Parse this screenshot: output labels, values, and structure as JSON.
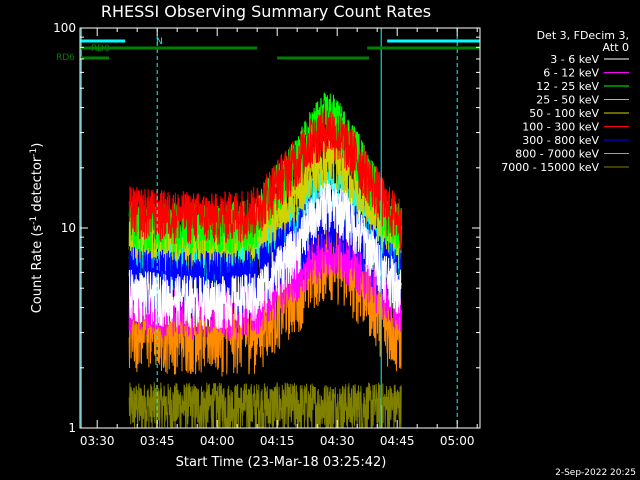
{
  "chart_data": {
    "type": "line",
    "title": "RHESSI Observing Summary Count Rates",
    "xlabel": "Start Time (23-Mar-18 03:25:42)",
    "ylabel_main": "Count Rate (s",
    "ylabel_sup1": "-1",
    "ylabel_mid": " detector",
    "ylabel_sup2": "-1",
    "ylabel_end": ")",
    "y_scale": "log",
    "ylim": [
      1,
      100
    ],
    "y_ticks": [
      {
        "value": 1,
        "label": "1"
      },
      {
        "value": 10,
        "label": "10"
      },
      {
        "value": 100,
        "label": "100"
      }
    ],
    "xlim": [
      "03:25:42",
      "05:05:42"
    ],
    "x_ticks": [
      {
        "time": "03:30",
        "label": "03:30"
      },
      {
        "time": "03:45",
        "label": "03:45"
      },
      {
        "time": "04:00",
        "label": "04:00"
      },
      {
        "time": "04:15",
        "label": "04:15"
      },
      {
        "time": "04:30",
        "label": "04:30"
      },
      {
        "time": "04:45",
        "label": "04:45"
      },
      {
        "time": "05:00",
        "label": "05:00"
      }
    ],
    "legend_header": [
      "Det 3, FDecim 3,",
      "Att 0"
    ],
    "legend_placement": "right",
    "series": [
      {
        "name": "3 - 6 keV",
        "color": "#ffffff",
        "draw_order": 9,
        "noise": 0.1,
        "values": [
          [
            "03:38",
            4.8
          ],
          [
            "03:45",
            4.6
          ],
          [
            "04:00",
            4.4
          ],
          [
            "04:10",
            4.6
          ],
          [
            "04:20",
            8.0
          ],
          [
            "04:25",
            12.5
          ],
          [
            "04:28",
            13.5
          ],
          [
            "04:32",
            12.0
          ],
          [
            "04:38",
            8.0
          ],
          [
            "04:42",
            6.0
          ],
          [
            "04:46",
            5.0
          ]
        ]
      },
      {
        "name": "6 - 12 keV",
        "color": "#ff00ff",
        "draw_order": 4,
        "noise": 0.1,
        "values": [
          [
            "03:38",
            4.2
          ],
          [
            "03:45",
            4.0
          ],
          [
            "04:00",
            3.9
          ],
          [
            "04:10",
            4.0
          ],
          [
            "04:20",
            6.0
          ],
          [
            "04:25",
            7.5
          ],
          [
            "04:28",
            8.0
          ],
          [
            "04:32",
            7.5
          ],
          [
            "04:38",
            5.8
          ],
          [
            "04:42",
            4.8
          ],
          [
            "04:46",
            4.2
          ]
        ]
      },
      {
        "name": "12 - 25 keV",
        "color": "#00ff00",
        "draw_order": 6,
        "noise": 0.1,
        "values": [
          [
            "03:38",
            11.0
          ],
          [
            "03:45",
            10.5
          ],
          [
            "04:00",
            10.0
          ],
          [
            "04:10",
            11.0
          ],
          [
            "04:20",
            22.0
          ],
          [
            "04:25",
            34.0
          ],
          [
            "04:28",
            38.0
          ],
          [
            "04:32",
            30.0
          ],
          [
            "04:38",
            18.0
          ],
          [
            "04:42",
            12.0
          ],
          [
            "04:46",
            10.0
          ]
        ]
      },
      {
        "name": "25 - 50 keV",
        "color": "#00ffff",
        "draw_order": 3,
        "noise": 0.12,
        "values": [
          [
            "03:38",
            8.0
          ],
          [
            "03:45",
            7.6
          ],
          [
            "04:00",
            7.2
          ],
          [
            "04:10",
            7.6
          ],
          [
            "04:20",
            11.0
          ],
          [
            "04:25",
            15.0
          ],
          [
            "04:28",
            16.0
          ],
          [
            "04:32",
            14.0
          ],
          [
            "04:38",
            10.0
          ],
          [
            "04:42",
            8.0
          ],
          [
            "04:46",
            7.2
          ]
        ]
      },
      {
        "name": "50 - 100 keV",
        "color": "#d2d200",
        "draw_order": 5,
        "noise": 0.1,
        "values": [
          [
            "03:38",
            9.5
          ],
          [
            "03:45",
            9.0
          ],
          [
            "04:00",
            8.6
          ],
          [
            "04:10",
            9.2
          ],
          [
            "04:20",
            15.0
          ],
          [
            "04:25",
            21.0
          ],
          [
            "04:28",
            23.0
          ],
          [
            "04:32",
            19.0
          ],
          [
            "04:38",
            13.0
          ],
          [
            "04:42",
            10.0
          ],
          [
            "04:46",
            8.8
          ]
        ]
      },
      {
        "name": "100 - 300 keV",
        "color": "#ff0000",
        "draw_order": 7,
        "noise": 0.1,
        "values": [
          [
            "03:38",
            12.5
          ],
          [
            "03:45",
            12.0
          ],
          [
            "04:00",
            11.5
          ],
          [
            "04:10",
            12.5
          ],
          [
            "04:20",
            22.0
          ],
          [
            "04:25",
            30.0
          ],
          [
            "04:28",
            32.0
          ],
          [
            "04:32",
            27.0
          ],
          [
            "04:38",
            18.0
          ],
          [
            "04:42",
            13.0
          ],
          [
            "04:46",
            11.0
          ]
        ]
      },
      {
        "name": "300 - 800 keV",
        "color": "#0000ff",
        "draw_order": 8,
        "noise": 0.12,
        "values": [
          [
            "03:38",
            6.0
          ],
          [
            "03:45",
            5.8
          ],
          [
            "04:00",
            5.6
          ],
          [
            "04:10",
            5.8
          ],
          [
            "04:20",
            9.0
          ],
          [
            "04:25",
            11.5
          ],
          [
            "04:28",
            12.0
          ],
          [
            "04:32",
            11.0
          ],
          [
            "04:38",
            8.0
          ],
          [
            "04:42",
            6.5
          ],
          [
            "04:46",
            5.8
          ]
        ]
      },
      {
        "name": "800 - 7000 keV",
        "color": "#ff8c00",
        "draw_order": 2,
        "noise": 0.14,
        "values": [
          [
            "03:38",
            3.3
          ],
          [
            "03:45",
            3.2
          ],
          [
            "04:00",
            3.1
          ],
          [
            "04:10",
            3.2
          ],
          [
            "04:20",
            5.0
          ],
          [
            "04:25",
            6.8
          ],
          [
            "04:28",
            7.5
          ],
          [
            "04:32",
            6.5
          ],
          [
            "04:38",
            4.8
          ],
          [
            "04:42",
            3.5
          ],
          [
            "04:46",
            3.0
          ]
        ]
      },
      {
        "name": "7000 - 15000 keV",
        "color": "#808000",
        "draw_order": 1,
        "noise": 0.1,
        "values": [
          [
            "03:38",
            1.3
          ],
          [
            "03:45",
            1.3
          ],
          [
            "04:46",
            1.3
          ]
        ]
      }
    ],
    "flags": [
      {
        "name": "SAA",
        "label": "",
        "color": "#00ffff",
        "segments": [
          [
            "03:25:42",
            "03:37:00"
          ],
          [
            "04:42:30",
            "05:05:42"
          ]
        ],
        "level": "top"
      },
      {
        "name": "N",
        "label": "N",
        "color": "#00ffff",
        "segments": [],
        "level": "top"
      },
      {
        "name": "RD0",
        "label": "RD0",
        "color": "#008000",
        "segments": [
          [
            "03:25:42",
            "03:32:00"
          ],
          [
            "03:32:00",
            "04:10:00"
          ],
          [
            "04:37:30",
            "05:05:42"
          ]
        ],
        "level": "mid"
      },
      {
        "name": "RD6",
        "label": "RD6",
        "color": "#008000",
        "segments": [
          [
            "03:25:42",
            "03:33:00"
          ],
          [
            "04:15:00",
            "04:38:00"
          ]
        ],
        "level": "low"
      }
    ],
    "vlines": [
      {
        "time": "03:26",
        "style": "solid",
        "color": "#00ffff"
      },
      {
        "time": "03:45",
        "style": "dashed",
        "color": "#00ffff"
      },
      {
        "time": "04:41",
        "style": "solid",
        "color": "#00ffff"
      },
      {
        "time": "05:00",
        "style": "dashed",
        "color": "#00ffff"
      }
    ],
    "footer": "2-Sep-2022 20:25"
  }
}
